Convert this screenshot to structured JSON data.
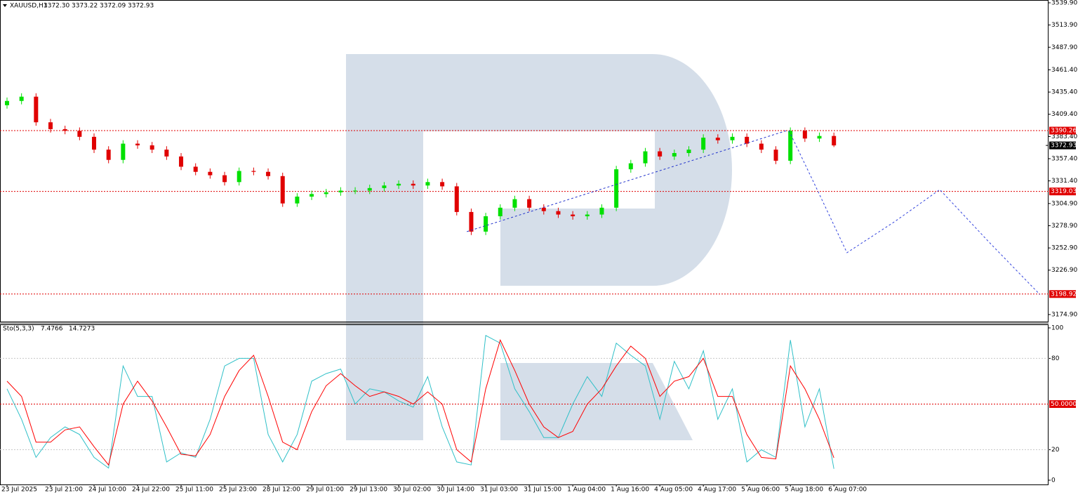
{
  "chart_data": [
    {
      "type": "candlestick",
      "title": "XAUUSD,H1",
      "quote": [
        "3372.30",
        "3373.22",
        "3372.09",
        "3372.93"
      ],
      "categories": [
        "23 Jul 2025",
        null,
        null,
        "23 Jul 21:00",
        null,
        null,
        "24 Jul 10:00",
        null,
        null,
        "24 Jul 22:00",
        null,
        null,
        "25 Jul 11:00",
        null,
        null,
        "25 Jul 23:00",
        null,
        null,
        "28 Jul 12:00",
        null,
        null,
        "29 Jul 01:00",
        null,
        null,
        "29 Jul 13:00",
        null,
        null,
        "30 Jul 02:00",
        null,
        null,
        "30 Jul 14:00",
        null,
        null,
        "31 Jul 03:00",
        null,
        null,
        "31 Jul 15:00",
        null,
        null,
        "1 Aug 04:00",
        null,
        null,
        "1 Aug 16:00",
        null,
        null,
        "4 Aug 05:00",
        null,
        null,
        "4 Aug 17:00",
        null,
        null,
        "5 Aug 06:00",
        null,
        null,
        "5 Aug 18:00",
        null,
        null,
        "6 Aug 07:00"
      ],
      "open": [
        3420,
        3425,
        3430,
        3400,
        3392,
        3390,
        3383,
        3368,
        3356,
        3375,
        3373,
        3368,
        3360,
        3348,
        3342,
        3338,
        3330,
        3343,
        3342,
        3337,
        3305,
        3313,
        3316,
        3318,
        3320,
        3320,
        3323,
        3326,
        3328,
        3326,
        3330,
        3325,
        3295,
        3272,
        3290,
        3300,
        3310,
        3300,
        3296,
        3292,
        3290,
        3292,
        3300,
        3345,
        3352,
        3366,
        3360,
        3364,
        3368,
        3382,
        3379,
        3383,
        3375,
        3368,
        3355,
        3390,
        3381,
        3384
      ],
      "high": [
        3429,
        3434,
        3434,
        3404,
        3396,
        3394,
        3387,
        3372,
        3379,
        3379,
        3377,
        3372,
        3364,
        3352,
        3346,
        3342,
        3347,
        3347,
        3346,
        3341,
        3317,
        3320,
        3322,
        3324,
        3324,
        3327,
        3330,
        3332,
        3332,
        3334,
        3334,
        3329,
        3299,
        3294,
        3304,
        3314,
        3314,
        3304,
        3300,
        3296,
        3296,
        3304,
        3349,
        3356,
        3370,
        3370,
        3368,
        3372,
        3386,
        3386,
        3387,
        3387,
        3379,
        3372,
        3394,
        3394,
        3388,
        3388
      ],
      "low": [
        3416,
        3421,
        3396,
        3388,
        3386,
        3379,
        3364,
        3352,
        3352,
        3369,
        3364,
        3356,
        3344,
        3338,
        3334,
        3326,
        3326,
        3338,
        3333,
        3301,
        3301,
        3309,
        3312,
        3314,
        3316,
        3316,
        3319,
        3322,
        3322,
        3322,
        3321,
        3291,
        3268,
        3268,
        3286,
        3296,
        3296,
        3292,
        3288,
        3286,
        3286,
        3288,
        3296,
        3341,
        3348,
        3356,
        3356,
        3360,
        3364,
        3375,
        3375,
        3371,
        3364,
        3351,
        3351,
        3377,
        3377,
        3371
      ],
      "close": [
        3425,
        3430,
        3400,
        3392,
        3390,
        3383,
        3368,
        3356,
        3375,
        3373,
        3368,
        3360,
        3348,
        3342,
        3338,
        3330,
        3343,
        3342,
        3337,
        3305,
        3313,
        3316,
        3318,
        3320,
        3320,
        3323,
        3326,
        3328,
        3326,
        3330,
        3325,
        3295,
        3272,
        3290,
        3300,
        3310,
        3300,
        3296,
        3292,
        3290,
        3292,
        3300,
        3345,
        3352,
        3366,
        3360,
        3364,
        3368,
        3382,
        3379,
        3383,
        3375,
        3368,
        3355,
        3390,
        3381,
        3384,
        3372.93
      ],
      "up_color": "#00e000",
      "down_color": "#e00000",
      "ylim": [
        3166.68,
        3543.19
      ],
      "yticks": [
        {
          "value": 3539.9,
          "label": "3539.90"
        },
        {
          "value": 3513.9,
          "label": "3513.90"
        },
        {
          "value": 3487.9,
          "label": "3487.90"
        },
        {
          "value": 3461.4,
          "label": "3461.40"
        },
        {
          "value": 3435.4,
          "label": "3435.40"
        },
        {
          "value": 3409.4,
          "label": "3409.40"
        },
        {
          "value": 3383.4,
          "label": "3383.40"
        },
        {
          "value": 3357.4,
          "label": "3357.40"
        },
        {
          "value": 3331.4,
          "label": "3331.40"
        },
        {
          "value": 3304.9,
          "label": "3304.90"
        },
        {
          "value": 3278.9,
          "label": "3278.90"
        },
        {
          "value": 3252.9,
          "label": "3252.90"
        },
        {
          "value": 3226.9,
          "label": "3226.90"
        },
        {
          "value": 3174.9,
          "label": "3174.90"
        }
      ],
      "levels": [
        {
          "value": 3390.26,
          "label": "3390.26",
          "color": "#e00000"
        },
        {
          "value": 3319.03,
          "label": "3319.03",
          "color": "#e00000"
        },
        {
          "value": 3198.92,
          "label": "3198.92",
          "color": "#e00000"
        }
      ],
      "last_price": {
        "value": 3372.93,
        "label": "3372.93",
        "color": "#000000"
      },
      "trendline": {
        "x": [
          31.7,
          53.7
        ],
        "values": [
          3272,
          3390
        ],
        "color": "#2233cc"
      },
      "forecast": {
        "x": [
          53.9,
          55.9,
          57.9,
          61.2,
          64.3,
          67.7,
          71.2
        ],
        "values": [
          3390.3,
          3319.2,
          3247.3,
          3283.8,
          3321.2,
          3259.6,
          3198.3
        ],
        "color": "#3344dd"
      }
    },
    {
      "type": "line",
      "title": "Sto(5,3,3)",
      "readout": [
        "7.4766",
        "14.7273"
      ],
      "series": [
        {
          "color": "#30c0c8",
          "values": [
            60,
            40,
            15,
            28,
            35,
            30,
            15,
            8,
            75,
            55,
            55,
            12,
            18,
            15,
            40,
            75,
            80,
            80,
            30,
            12,
            30,
            65,
            70,
            73,
            50,
            60,
            58,
            52,
            48,
            68,
            35,
            12,
            10,
            95,
            90,
            60,
            45,
            28,
            28,
            50,
            68,
            55,
            90,
            82,
            75,
            40,
            78,
            60,
            85,
            40,
            60,
            12,
            20,
            15,
            92,
            35,
            60,
            7.4766
          ]
        },
        {
          "color": "#ff0000",
          "values": [
            65,
            55,
            25,
            25,
            33,
            35,
            22,
            10,
            50,
            65,
            52,
            35,
            17,
            16,
            30,
            55,
            72,
            82,
            55,
            25,
            20,
            45,
            62,
            70,
            62,
            55,
            58,
            55,
            50,
            58,
            50,
            20,
            12,
            60,
            92,
            72,
            50,
            35,
            28,
            32,
            50,
            60,
            75,
            88,
            80,
            55,
            65,
            68,
            80,
            55,
            55,
            30,
            15,
            14,
            75,
            60,
            40,
            14.7273
          ]
        }
      ],
      "ylim": [
        -2.8,
        102.3
      ],
      "yticks": [
        100,
        80,
        20,
        0
      ],
      "levels": [
        {
          "value": 80,
          "color": "#c8c8c8"
        },
        {
          "value": 50,
          "label": "50.0000",
          "color": "#e00000"
        },
        {
          "value": 20,
          "color": "#c8c8c8"
        }
      ]
    }
  ]
}
